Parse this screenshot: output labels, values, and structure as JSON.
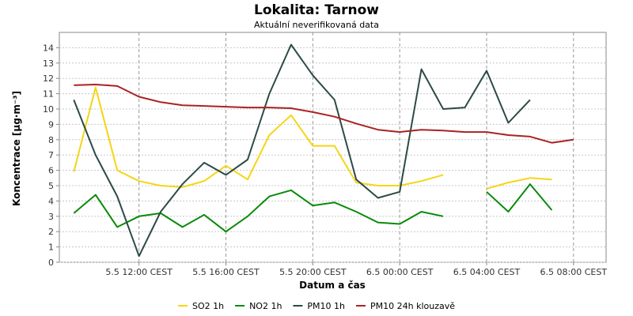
{
  "chart_data": {
    "type": "line",
    "title": "Lokalita: Tarnow",
    "subtitle": "Aktuální neverifikovaná data",
    "xlabel": "Datum a čas",
    "ylabel": "Koncentrace [µg·m⁻³]",
    "ylim": [
      0,
      15
    ],
    "yticks": [
      "0",
      "1",
      "2",
      "3",
      "4",
      "5",
      "6",
      "7",
      "8",
      "9",
      "10",
      "11",
      "12",
      "13",
      "14"
    ],
    "x": [
      "2024-05-05T09:00",
      "2024-05-05T10:00",
      "2024-05-05T11:00",
      "2024-05-05T12:00",
      "2024-05-05T13:00",
      "2024-05-05T14:00",
      "2024-05-05T15:00",
      "2024-05-05T16:00",
      "2024-05-05T17:00",
      "2024-05-05T18:00",
      "2024-05-05T19:00",
      "2024-05-05T20:00",
      "2024-05-05T21:00",
      "2024-05-05T22:00",
      "2024-05-05T23:00",
      "2024-05-06T00:00",
      "2024-05-06T01:00",
      "2024-05-06T02:00",
      "2024-05-06T03:00",
      "2024-05-06T04:00",
      "2024-05-06T05:00",
      "2024-05-06T06:00",
      "2024-05-06T07:00",
      "2024-05-06T08:00"
    ],
    "xlim": [
      "2024-05-05T08:20",
      "2024-05-06T09:30"
    ],
    "xticks": [
      {
        "x": "2024-05-05T12:00",
        "label": "5.5 12:00 CEST"
      },
      {
        "x": "2024-05-05T16:00",
        "label": "5.5 16:00 CEST"
      },
      {
        "x": "2024-05-05T20:00",
        "label": "5.5 20:00 CEST"
      },
      {
        "x": "2024-05-06T00:00",
        "label": "6.5 00:00 CEST"
      },
      {
        "x": "2024-05-06T04:00",
        "label": "6.5 04:00 CEST"
      },
      {
        "x": "2024-05-06T08:00",
        "label": "6.5 08:00 CEST"
      }
    ],
    "series": [
      {
        "name": "SO2 1h",
        "color": "#f5d516",
        "values": [
          5.9,
          11.4,
          6.0,
          5.3,
          5.0,
          4.9,
          5.3,
          6.3,
          5.4,
          8.3,
          9.6,
          7.6,
          7.6,
          5.2,
          5.0,
          5.0,
          5.3,
          5.7,
          null,
          4.8,
          5.2,
          5.5,
          5.4,
          null
        ]
      },
      {
        "name": "NO2 1h",
        "color": "#0a8a0a",
        "values": [
          3.2,
          4.4,
          2.3,
          3.0,
          3.2,
          2.3,
          3.1,
          2.0,
          3.0,
          4.3,
          4.7,
          3.7,
          3.9,
          3.3,
          2.6,
          2.5,
          3.3,
          3.0,
          null,
          4.6,
          3.3,
          5.1,
          3.4,
          null
        ]
      },
      {
        "name": "PM10 1h",
        "color": "#2c4a47",
        "values": [
          10.6,
          7.0,
          4.3,
          0.4,
          3.3,
          5.1,
          6.5,
          5.7,
          6.7,
          11.0,
          14.2,
          12.2,
          10.6,
          5.4,
          4.2,
          4.6,
          12.6,
          10.0,
          10.1,
          12.5,
          9.1,
          10.6,
          null,
          null
        ]
      },
      {
        "name": "PM10 24h klouzavě",
        "color": "#aa2222",
        "values": [
          11.55,
          11.6,
          11.5,
          10.8,
          10.45,
          10.25,
          10.2,
          10.15,
          10.1,
          10.1,
          10.05,
          9.8,
          9.5,
          9.05,
          8.65,
          8.5,
          8.65,
          8.6,
          8.5,
          8.5,
          8.3,
          8.2,
          7.8,
          8.0
        ]
      }
    ],
    "grid": true,
    "legend": "bottom"
  }
}
